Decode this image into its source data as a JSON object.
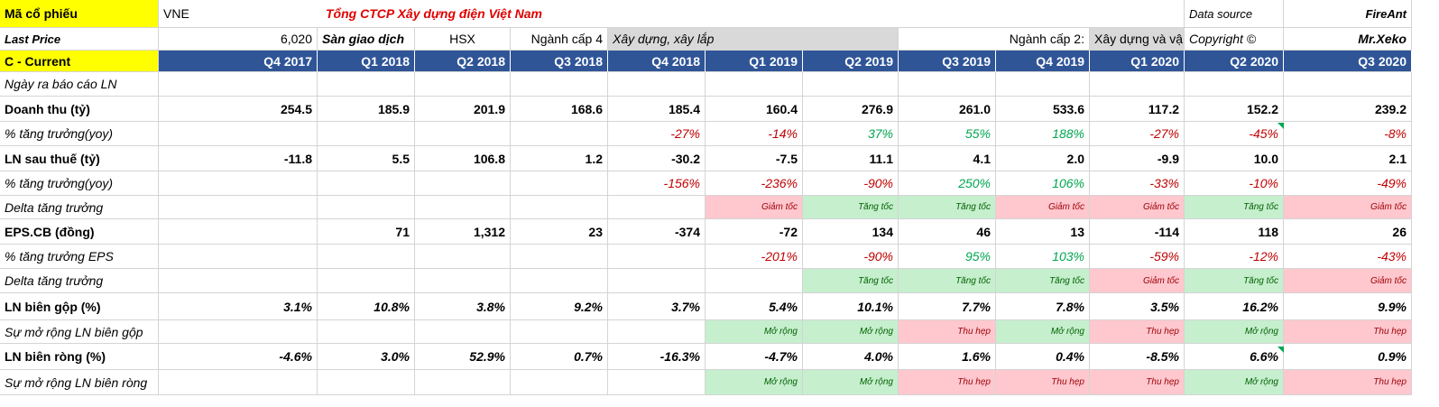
{
  "header": {
    "ticker_label": "Mã cổ phiếu",
    "ticker": "VNE",
    "company": "Tổng CTCP Xây dựng điện Việt Nam",
    "data_source_label": "Data source",
    "data_source": "FireAnt",
    "last_price_label": "Last Price",
    "last_price": "6,020",
    "exchange_label": "Sàn giao dịch",
    "exchange": "HSX",
    "industry4_label": "Ngành cấp 4",
    "industry4": "Xây dựng, xây lắp",
    "industry2_label": "Ngành cấp 2:",
    "industry2": "Xây dựng và vậ",
    "copyright_label": "Copyright ©",
    "author": "Mr.Xeko",
    "current_label": "C - Current"
  },
  "quarters": [
    "Q4 2017",
    "Q1 2018",
    "Q2 2018",
    "Q3 2018",
    "Q4 2018",
    "Q1 2019",
    "Q2 2019",
    "Q3 2019",
    "Q4 2019",
    "Q1 2020",
    "Q2 2020",
    "Q3 2020"
  ],
  "rows": [
    {
      "label": "Ngày ra báo cáo LN",
      "kind": "italic",
      "cells": [
        "",
        "",
        "",
        "",
        "",
        "",
        "",
        "",
        "",
        "",
        "",
        ""
      ]
    },
    {
      "label": "Doanh thu (tỷ)",
      "kind": "bold",
      "cells": [
        "254.5",
        "185.9",
        "201.9",
        "168.6",
        "185.4",
        "160.4",
        "276.9",
        "261.0",
        "533.6",
        "117.2",
        "152.2",
        "239.2"
      ]
    },
    {
      "label": "% tăng trưởng(yoy)",
      "kind": "pct",
      "cells": [
        "",
        "",
        "",
        "",
        "-27%",
        "-14%",
        "37%",
        "55%",
        "188%",
        "-27%",
        "-45%",
        "-8%"
      ]
    },
    {
      "label": "LN sau thuế (tỷ)",
      "kind": "bold",
      "cells": [
        "-11.8",
        "5.5",
        "106.8",
        "1.2",
        "-30.2",
        "-7.5",
        "11.1",
        "4.1",
        "2.0",
        "-9.9",
        "10.0",
        "2.1"
      ]
    },
    {
      "label": "% tăng trưởng(yoy)",
      "kind": "pct",
      "cells": [
        "",
        "",
        "",
        "",
        "-156%",
        "-236%",
        "-90%",
        "250%",
        "106%",
        "-33%",
        "-10%",
        "-49%"
      ]
    },
    {
      "label": "Delta tăng trưởng",
      "kind": "tag",
      "cells": [
        "",
        "",
        "",
        "",
        "",
        "Giảm tốc",
        "Tăng tốc",
        "Tăng tốc",
        "Giảm tốc",
        "Giảm tốc",
        "Tăng tốc",
        "Giảm tốc"
      ]
    },
    {
      "label": "EPS.CB (đồng)",
      "kind": "bold",
      "cells": [
        "",
        "71",
        "1,312",
        "23",
        "-374",
        "-72",
        "134",
        "46",
        "13",
        "-114",
        "118",
        "26"
      ]
    },
    {
      "label": "% tăng trưởng EPS",
      "kind": "pct",
      "cells": [
        "",
        "",
        "",
        "",
        "",
        "-201%",
        "-90%",
        "95%",
        "103%",
        "-59%",
        "-12%",
        "-43%"
      ]
    },
    {
      "label": "Delta tăng trưởng",
      "kind": "tag",
      "cells": [
        "",
        "",
        "",
        "",
        "",
        "",
        "Tăng tốc",
        "Tăng tốc",
        "Tăng tốc",
        "Giảm tốc",
        "Tăng tốc",
        "Giảm tốc"
      ]
    },
    {
      "label": "LN biên gộp (%)",
      "kind": "bolditalic",
      "cells": [
        "3.1%",
        "10.8%",
        "3.8%",
        "9.2%",
        "3.7%",
        "5.4%",
        "10.1%",
        "7.7%",
        "7.8%",
        "3.5%",
        "16.2%",
        "9.9%"
      ]
    },
    {
      "label": "Sự mở rộng LN biên gộp",
      "kind": "tag",
      "cells": [
        "",
        "",
        "",
        "",
        "",
        "Mở rộng",
        "Mở rộng",
        "Thu hẹp",
        "Mở rộng",
        "Thu hẹp",
        "Mở rộng",
        "Thu hẹp"
      ]
    },
    {
      "label": "LN biên ròng (%)",
      "kind": "bolditalic",
      "cells": [
        "-4.6%",
        "3.0%",
        "52.9%",
        "0.7%",
        "-16.3%",
        "-4.7%",
        "4.0%",
        "1.6%",
        "0.4%",
        "-8.5%",
        "6.6%",
        "0.9%"
      ]
    },
    {
      "label": "Sự mở rộng LN biên ròng",
      "kind": "tag",
      "cells": [
        "",
        "",
        "",
        "",
        "",
        "Mở rộng",
        "Mở rộng",
        "Thu hẹp",
        "Thu hẹp",
        "Thu hẹp",
        "Mở rộng",
        "Thu hẹp"
      ]
    }
  ],
  "colors": {
    "header_bg": "#2f5597",
    "highlight": "#ffff00",
    "accel_bg": "#c6efce",
    "decel_bg": "#ffc7ce",
    "neg": "#c00000",
    "pos": "#00a650"
  }
}
